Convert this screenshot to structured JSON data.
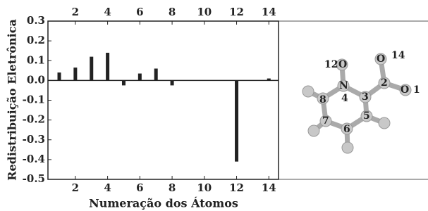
{
  "chart_data": {
    "type": "bar",
    "y_label": "Redistribuição Eletrônica",
    "x_label": "Numeração dos Átomos",
    "x": [
      1,
      2,
      3,
      4,
      5,
      6,
      7,
      8,
      12,
      14
    ],
    "values": [
      0.04,
      0.065,
      0.12,
      0.14,
      -0.025,
      0.035,
      0.06,
      -0.025,
      -0.41,
      0.01
    ],
    "color": "#222222",
    "xlim": [
      0.3,
      14.6
    ],
    "xticks": [
      2,
      4,
      6,
      8,
      10,
      12,
      14
    ],
    "ylim": [
      -0.5,
      0.3
    ],
    "yticks": [
      0.3,
      0.2,
      0.1,
      {
        "value": 0,
        "label": "0.0"
      },
      -0.1,
      -0.2,
      -0.3,
      -0.4,
      -0.5
    ]
  },
  "molecule": {
    "labels": [
      "12",
      "O",
      "N",
      "4",
      "3",
      "2",
      "O",
      "14",
      "O",
      "1",
      "8",
      "5",
      "6",
      "7"
    ]
  }
}
